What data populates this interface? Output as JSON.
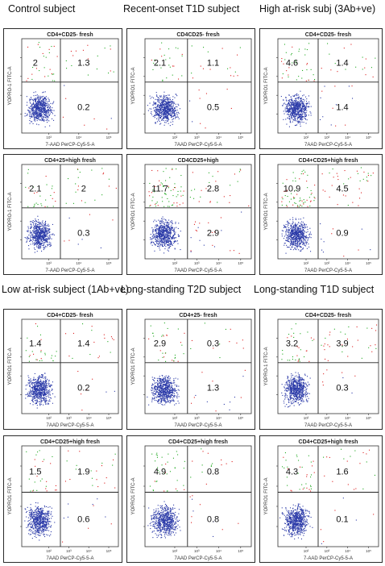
{
  "column_headers": [
    "Control subject",
    "Recent-onset T1D  subject",
    "High at-risk subj (3Ab+ve)",
    "Low at-risk subject (1Ab+ve)",
    "Long-standing T2D subject",
    "Long-standing T1D subject"
  ],
  "colors": {
    "live_cells": "#2b3aa8",
    "early_apoptotic": "#22aa22",
    "late_apoptotic": "#dd2222",
    "gate_lines": "#222222"
  },
  "chart_data": [
    {
      "type": "scatter",
      "title": "CD4+CD25- fresh",
      "xlabel": "7-AAD PerCP-Cy5-5-A",
      "ylabel": "YOPRO-1 FITC-A",
      "x_scale": "log",
      "y_scale": "log",
      "xlim": [
        10,
        100000
      ],
      "ylim": [
        10,
        100000
      ],
      "x_ticks": [
        "10³",
        "10⁴",
        "10⁵"
      ],
      "quadrants": {
        "upper_left": 2,
        "upper_right": 1.3,
        "lower_right": 0.2
      }
    },
    {
      "type": "scatter",
      "title": "CD4CD25- fresh",
      "xlabel": "7AAD PerCP-Cy5-5-A",
      "ylabel": "YOPRO1 FITC-A",
      "x_scale": "log",
      "y_scale": "log",
      "xlim": [
        10,
        100000
      ],
      "ylim": [
        10,
        100000
      ],
      "x_ticks": [
        "10²",
        "10³",
        "10⁴",
        "10⁵"
      ],
      "quadrants": {
        "upper_left": 2.1,
        "upper_right": 1.1,
        "lower_right": 0.5
      }
    },
    {
      "type": "scatter",
      "title": "CD4+CD25- fresh",
      "xlabel": "7AAD PerCP-Cy5-5-A",
      "ylabel": "YOPRO1 FITC-A",
      "x_scale": "log",
      "y_scale": "log",
      "xlim": [
        10,
        100000
      ],
      "ylim": [
        10,
        100000
      ],
      "x_ticks": [
        "10²",
        "10³",
        "10⁴",
        "10⁵"
      ],
      "quadrants": {
        "upper_left": 4.6,
        "upper_right": 1.4,
        "lower_right": 1.4
      }
    },
    {
      "type": "scatter",
      "title": "CD4+25+high fresh",
      "xlabel": "7-AAD PerCP-Cy5-5-A",
      "ylabel": "YOPRO-1 FITC-A",
      "x_scale": "log",
      "y_scale": "log",
      "xlim": [
        10,
        100000
      ],
      "ylim": [
        10,
        100000
      ],
      "x_ticks": [
        "10³",
        "10⁴",
        "10⁵"
      ],
      "quadrants": {
        "upper_left": 2.1,
        "upper_right": 2,
        "lower_right": 0.3
      }
    },
    {
      "type": "scatter",
      "title": "CD4CD25+high",
      "xlabel": "7AAD PerCP-Cy5-5-A",
      "ylabel": "YOPRO1 FITC-A",
      "x_scale": "log",
      "y_scale": "log",
      "xlim": [
        10,
        100000
      ],
      "ylim": [
        10,
        100000
      ],
      "x_ticks": [
        "10²",
        "10³",
        "10⁴",
        "10⁵"
      ],
      "quadrants": {
        "upper_left": 11.7,
        "upper_right": 2.8,
        "lower_right": 2.9
      }
    },
    {
      "type": "scatter",
      "title": "CD4+CD25+high fresh",
      "xlabel": "7AAD PerCP-Cy5-5-A",
      "ylabel": "YOPRO1 FITC-A",
      "x_scale": "log",
      "y_scale": "log",
      "xlim": [
        10,
        100000
      ],
      "ylim": [
        10,
        100000
      ],
      "x_ticks": [
        "10²",
        "10³",
        "10⁴",
        "10⁵"
      ],
      "quadrants": {
        "upper_left": 10.9,
        "upper_right": 4.5,
        "lower_right": 0.9
      }
    },
    {
      "type": "scatter",
      "title": "CD4+CD25- fresh",
      "xlabel": "7AAD PerCP-Cy5-5-A",
      "ylabel": "YOPRO1 FITC-A",
      "x_scale": "log",
      "y_scale": "log",
      "xlim": [
        10,
        100000
      ],
      "ylim": [
        10,
        100000
      ],
      "x_ticks": [
        "10²",
        "10³",
        "10⁴",
        "10⁵"
      ],
      "quadrants": {
        "upper_left": 1.4,
        "upper_right": 1.4,
        "lower_right": 0.2
      }
    },
    {
      "type": "scatter",
      "title": "CD4+25- fresh",
      "xlabel": "7AAD PerCP-Cy5-5-A",
      "ylabel": "YOPRO1 FITC-A",
      "x_scale": "log",
      "y_scale": "log",
      "xlim": [
        10,
        100000
      ],
      "ylim": [
        10,
        100000
      ],
      "x_ticks": [
        "10²",
        "10³",
        "10⁴",
        "10⁵"
      ],
      "quadrants": {
        "upper_left": 2.9,
        "upper_right": 0.3,
        "lower_right": 1.3
      }
    },
    {
      "type": "scatter",
      "title": "CD4+CD25- fresh",
      "xlabel": "7AAD PerCP-Cy5-5-A",
      "ylabel": "YOPRO-1 FITC-A",
      "x_scale": "log",
      "y_scale": "log",
      "xlim": [
        10,
        100000
      ],
      "ylim": [
        10,
        100000
      ],
      "x_ticks": [
        "10²",
        "10³",
        "10⁴",
        "10⁵"
      ],
      "quadrants": {
        "upper_left": 3.2,
        "upper_right": 3.9,
        "lower_right": 0.3
      }
    },
    {
      "type": "scatter",
      "title": "CD4+CD25+high fresh",
      "xlabel": "7AAD PerCP-Cy5-5-A",
      "ylabel": "YOPRO1 FITC-A",
      "x_scale": "log",
      "y_scale": "log",
      "xlim": [
        10,
        100000
      ],
      "ylim": [
        10,
        100000
      ],
      "x_ticks": [
        "10²",
        "10³",
        "10⁴",
        "10⁵"
      ],
      "quadrants": {
        "upper_left": 1.5,
        "upper_right": 1.9,
        "lower_right": 0.6
      }
    },
    {
      "type": "scatter",
      "title": "CD4+CD25+high fresh",
      "xlabel": "7AAD PerCP-Cy5-5-A",
      "ylabel": "YOPRO1 FITC-A",
      "x_scale": "log",
      "y_scale": "log",
      "xlim": [
        10,
        100000
      ],
      "ylim": [
        10,
        100000
      ],
      "x_ticks": [
        "10²",
        "10³",
        "10⁴",
        "10⁵"
      ],
      "quadrants": {
        "upper_left": 4.9,
        "upper_right": 0.8,
        "lower_right": 0.8
      }
    },
    {
      "type": "scatter",
      "title": "CD4+CD25+high fresh",
      "xlabel": "7-AAD PerCP-Cy5-5-A",
      "ylabel": "YOPRO1 FITC-A",
      "x_scale": "log",
      "y_scale": "log",
      "xlim": [
        10,
        100000
      ],
      "ylim": [
        10,
        100000
      ],
      "x_ticks": [
        "10²",
        "10³",
        "10⁴",
        "10⁵"
      ],
      "quadrants": {
        "upper_left": 4.3,
        "upper_right": 1.6,
        "lower_right": 0.1
      }
    }
  ]
}
